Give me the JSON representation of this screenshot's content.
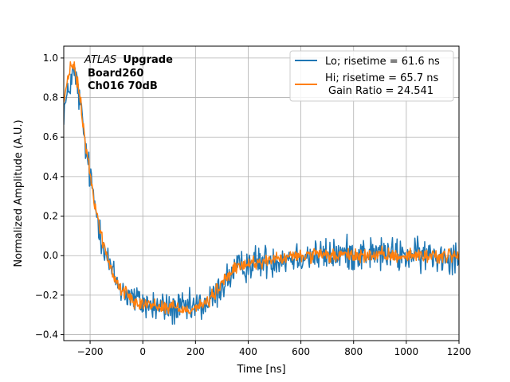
{
  "chart_data": {
    "type": "line",
    "title": "",
    "xlabel": "Time [ns]",
    "ylabel": "Normalized Amplitude (A.U.)",
    "xlim": [
      -300,
      1200
    ],
    "ylim": [
      -0.43,
      1.06
    ],
    "xticks": [
      -200,
      0,
      200,
      400,
      600,
      800,
      1000,
      1200
    ],
    "yticks": [
      -0.4,
      -0.2,
      0.0,
      0.2,
      0.4,
      0.6,
      0.8,
      1.0
    ],
    "xtick_labels": [
      "−200",
      "0",
      "200",
      "400",
      "600",
      "800",
      "1000",
      "1200"
    ],
    "ytick_labels": [
      "−0.4",
      "−0.2",
      "0.0",
      "0.2",
      "0.4",
      "0.6",
      "0.8",
      "1.0"
    ],
    "grid": true,
    "legend_position": "top-right",
    "annotation": {
      "line1_italic": "ATLAS",
      "line1_bold": "Upgrade",
      "line2": "Board260",
      "line3": "Ch016 70dB"
    },
    "series": [
      {
        "name": "Lo; risetime = 61.6 ns",
        "legend_label": "Lo; risetime = 61.6 ns",
        "color": "#1f77b4",
        "x": [
          -300,
          -285,
          -275,
          -265,
          -255,
          -245,
          -235,
          -225,
          -215,
          -205,
          -195,
          -185,
          -175,
          -165,
          -155,
          -145,
          -135,
          -125,
          -115,
          -105,
          -95,
          -85,
          -75,
          -65,
          -55,
          -45,
          -35,
          -25,
          -15,
          0,
          25,
          50,
          75,
          100,
          125,
          150,
          175,
          200,
          225,
          250,
          275,
          300,
          325,
          350,
          375,
          400,
          450,
          500,
          550,
          600,
          650,
          700,
          750,
          800,
          900,
          1000,
          1100,
          1200
        ],
        "y": [
          0.74,
          0.8,
          0.88,
          0.92,
          0.9,
          0.83,
          0.74,
          0.63,
          0.52,
          0.44,
          0.36,
          0.28,
          0.21,
          0.15,
          0.09,
          0.04,
          -0.01,
          -0.05,
          -0.09,
          -0.12,
          -0.14,
          -0.16,
          -0.18,
          -0.19,
          -0.2,
          -0.21,
          -0.22,
          -0.23,
          -0.23,
          -0.24,
          -0.25,
          -0.26,
          -0.26,
          -0.27,
          -0.27,
          -0.27,
          -0.27,
          -0.26,
          -0.25,
          -0.24,
          -0.2,
          -0.15,
          -0.11,
          -0.08,
          -0.06,
          -0.04,
          -0.03,
          -0.02,
          -0.01,
          0.0,
          0.0,
          0.0,
          0.01,
          0.01,
          0.01,
          0.0,
          0.0,
          0.0
        ],
        "noise": 0.06
      },
      {
        "name": "Hi; risetime = 65.7 ns\n Gain Ratio = 24.541",
        "legend_label_line1": "Hi; risetime = 65.7 ns",
        "legend_label_line2": "Gain Ratio = 24.541",
        "color": "#ff7f0e",
        "x": [
          -300,
          -285,
          -275,
          -265,
          -255,
          -245,
          -235,
          -225,
          -215,
          -205,
          -195,
          -185,
          -175,
          -165,
          -155,
          -145,
          -135,
          -125,
          -115,
          -105,
          -95,
          -85,
          -75,
          -65,
          -55,
          -45,
          -35,
          -25,
          -15,
          0,
          25,
          50,
          75,
          100,
          125,
          150,
          175,
          200,
          225,
          250,
          275,
          300,
          325,
          350,
          375,
          400,
          450,
          500,
          550,
          600,
          650,
          700,
          750,
          800,
          900,
          1000,
          1100,
          1200
        ],
        "y": [
          0.78,
          0.88,
          0.95,
          0.97,
          0.92,
          0.85,
          0.76,
          0.65,
          0.54,
          0.45,
          0.37,
          0.29,
          0.22,
          0.15,
          0.09,
          0.04,
          -0.01,
          -0.05,
          -0.09,
          -0.12,
          -0.14,
          -0.16,
          -0.18,
          -0.19,
          -0.2,
          -0.21,
          -0.22,
          -0.23,
          -0.23,
          -0.24,
          -0.25,
          -0.25,
          -0.26,
          -0.26,
          -0.26,
          -0.27,
          -0.27,
          -0.26,
          -0.25,
          -0.23,
          -0.19,
          -0.14,
          -0.1,
          -0.07,
          -0.05,
          -0.04,
          -0.03,
          -0.02,
          -0.01,
          0.0,
          0.0,
          0.0,
          0.0,
          0.0,
          0.0,
          0.0,
          0.0,
          0.0
        ],
        "noise": 0.025
      }
    ]
  }
}
